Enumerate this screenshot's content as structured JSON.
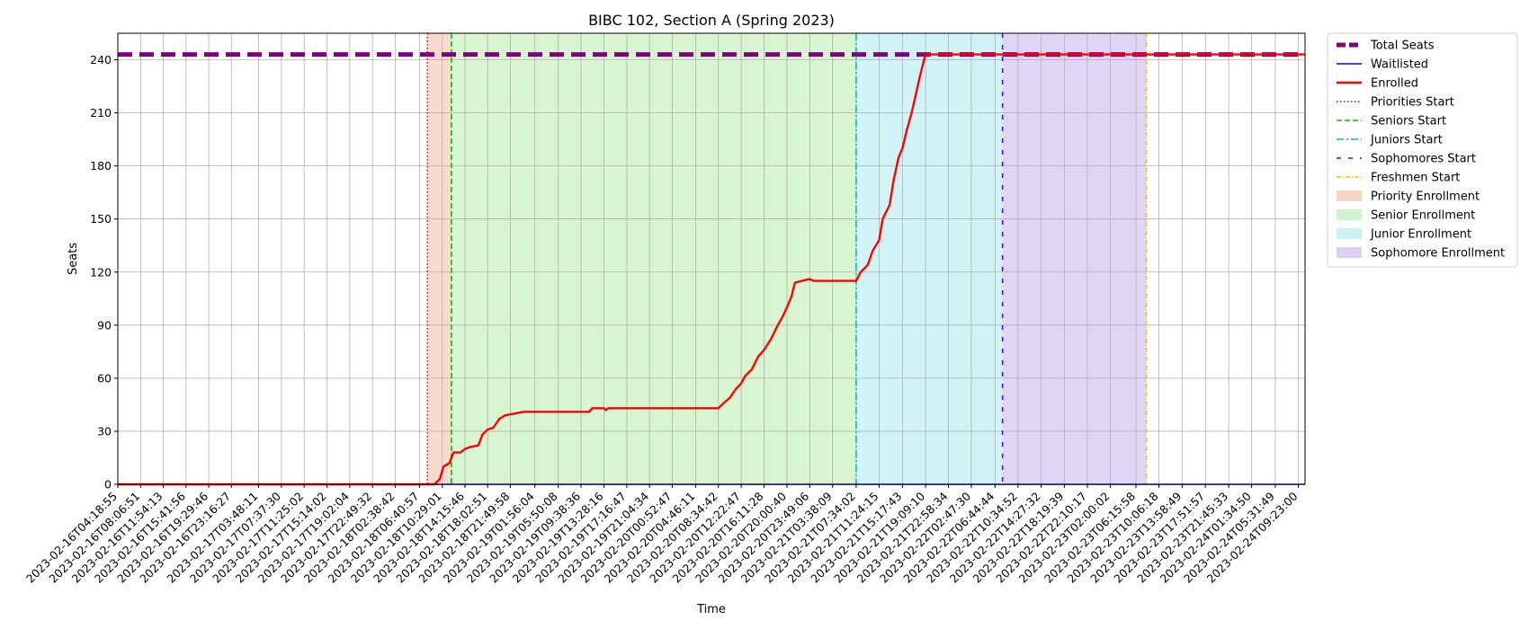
{
  "chart_data": {
    "type": "line",
    "title": "BIBC 102, Section A (Spring 2023)",
    "xlabel": "Time",
    "ylabel": "Seats",
    "ylim": [
      0,
      255
    ],
    "yticks": [
      0,
      30,
      60,
      90,
      120,
      150,
      180,
      210,
      240
    ],
    "grid": true,
    "legend_position": "outside-right",
    "xlim": [
      "2023-02-16T04:18:55",
      "2023-02-24T10:30:00"
    ],
    "xtick_labels": [
      "2023-02-16T04:18:55",
      "2023-02-16T08:06:51",
      "2023-02-16T11:54:13",
      "2023-02-16T15:41:56",
      "2023-02-16T19:29:46",
      "2023-02-16T23:16:27",
      "2023-02-17T03:48:11",
      "2023-02-17T07:37:30",
      "2023-02-17T11:25:02",
      "2023-02-17T15:14:02",
      "2023-02-17T19:02:04",
      "2023-02-17T22:49:32",
      "2023-02-18T02:38:42",
      "2023-02-18T06:40:57",
      "2023-02-18T10:29:01",
      "2023-02-18T14:15:46",
      "2023-02-18T18:02:51",
      "2023-02-18T21:49:58",
      "2023-02-19T01:56:04",
      "2023-02-19T05:50:08",
      "2023-02-19T09:38:36",
      "2023-02-19T13:28:16",
      "2023-02-19T17:16:47",
      "2023-02-19T21:04:34",
      "2023-02-20T00:52:47",
      "2023-02-20T04:46:11",
      "2023-02-20T08:34:42",
      "2023-02-20T12:22:47",
      "2023-02-20T16:11:28",
      "2023-02-20T20:00:40",
      "2023-02-20T23:49:06",
      "2023-02-21T03:38:09",
      "2023-02-21T07:34:02",
      "2023-02-21T11:24:15",
      "2023-02-21T15:17:43",
      "2023-02-21T19:09:10",
      "2023-02-21T22:58:34",
      "2023-02-22T02:47:30",
      "2023-02-22T06:44:44",
      "2023-02-22T10:34:52",
      "2023-02-22T14:27:32",
      "2023-02-22T18:19:39",
      "2023-02-22T22:10:17",
      "2023-02-23T02:00:02",
      "2023-02-23T06:15:58",
      "2023-02-23T10:06:18",
      "2023-02-23T13:58:49",
      "2023-02-23T17:51:57",
      "2023-02-23T21:45:33",
      "2023-02-24T01:34:50",
      "2023-02-24T05:31:49",
      "2023-02-24T09:23:00"
    ],
    "series": [
      {
        "name": "Total Seats",
        "color": "#800080",
        "style": "dashed-thick",
        "points": [
          [
            "2023-02-16T04:18:55",
            243
          ],
          [
            "2023-02-24T10:30:00",
            243
          ]
        ]
      },
      {
        "name": "Waitlisted",
        "color": "#0000ff",
        "style": "solid",
        "points": [
          [
            "2023-02-16T04:18:55",
            0
          ],
          [
            "2023-02-24T10:30:00",
            0
          ]
        ]
      },
      {
        "name": "Enrolled",
        "color": "#ff0000",
        "style": "solid-thick",
        "points": [
          [
            "2023-02-16T04:18:55",
            0
          ],
          [
            "2023-02-18T09:10:00",
            0
          ],
          [
            "2023-02-18T10:05:00",
            3
          ],
          [
            "2023-02-18T10:40:00",
            10
          ],
          [
            "2023-02-18T11:40:00",
            12
          ],
          [
            "2023-02-18T12:20:00",
            18
          ],
          [
            "2023-02-18T13:30:00",
            18
          ],
          [
            "2023-02-18T14:15:46",
            20
          ],
          [
            "2023-02-18T15:00:00",
            21
          ],
          [
            "2023-02-18T16:30:00",
            22
          ],
          [
            "2023-02-18T17:10:00",
            28
          ],
          [
            "2023-02-18T18:02:51",
            31
          ],
          [
            "2023-02-18T19:00:00",
            32
          ],
          [
            "2023-02-18T20:00:00",
            37
          ],
          [
            "2023-02-18T21:00:00",
            39
          ],
          [
            "2023-02-18T22:30:00",
            40
          ],
          [
            "2023-02-19T00:00:00",
            41
          ],
          [
            "2023-02-19T11:00:00",
            41
          ],
          [
            "2023-02-19T11:30:00",
            43
          ],
          [
            "2023-02-19T13:30:00",
            43
          ],
          [
            "2023-02-19T13:45:00",
            42
          ],
          [
            "2023-02-19T14:10:00",
            43
          ],
          [
            "2023-02-20T08:34:42",
            43
          ],
          [
            "2023-02-20T09:30:00",
            46
          ],
          [
            "2023-02-20T10:30:00",
            49
          ],
          [
            "2023-02-20T11:30:00",
            54
          ],
          [
            "2023-02-20T12:22:47",
            57
          ],
          [
            "2023-02-20T13:00:00",
            61
          ],
          [
            "2023-02-20T14:10:00",
            65
          ],
          [
            "2023-02-20T15:10:00",
            72
          ],
          [
            "2023-02-20T16:11:28",
            76
          ],
          [
            "2023-02-20T17:20:00",
            82
          ],
          [
            "2023-02-20T18:20:00",
            89
          ],
          [
            "2023-02-20T19:20:00",
            95
          ],
          [
            "2023-02-20T20:00:40",
            100
          ],
          [
            "2023-02-20T20:45:00",
            106
          ],
          [
            "2023-02-20T21:20:00",
            114
          ],
          [
            "2023-02-20T22:30:00",
            115
          ],
          [
            "2023-02-20T23:49:06",
            116
          ],
          [
            "2023-02-21T00:30:00",
            115
          ],
          [
            "2023-02-21T07:34:02",
            115
          ],
          [
            "2023-02-21T08:20:00",
            120
          ],
          [
            "2023-02-21T09:30:00",
            124
          ],
          [
            "2023-02-21T10:20:00",
            132
          ],
          [
            "2023-02-21T11:24:15",
            138
          ],
          [
            "2023-02-21T12:00:00",
            150
          ],
          [
            "2023-02-21T13:10:00",
            158
          ],
          [
            "2023-02-21T13:50:00",
            172
          ],
          [
            "2023-02-21T14:40:00",
            185
          ],
          [
            "2023-02-21T15:17:43",
            190
          ],
          [
            "2023-02-21T16:00:00",
            200
          ],
          [
            "2023-02-21T16:50:00",
            210
          ],
          [
            "2023-02-21T17:30:00",
            220
          ],
          [
            "2023-02-21T18:10:00",
            230
          ],
          [
            "2023-02-21T18:45:00",
            238
          ],
          [
            "2023-02-21T19:09:10",
            243
          ],
          [
            "2023-02-24T10:30:00",
            243
          ]
        ]
      }
    ],
    "markers": [
      {
        "name": "Priorities Start",
        "color": "#ff0000",
        "style": "dotted",
        "time": "2023-02-18T08:00:00"
      },
      {
        "name": "Seniors Start",
        "color": "#00c000",
        "style": "dashed",
        "time": "2023-02-18T12:00:00"
      },
      {
        "name": "Juniors Start",
        "color": "#00bfbf",
        "style": "dashdot",
        "time": "2023-02-21T07:34:02"
      },
      {
        "name": "Sophomores Start",
        "color": "#5a00ff",
        "style": "loose-dash",
        "time": "2023-02-22T08:00:00"
      },
      {
        "name": "Freshmen Start",
        "color": "#e6c800",
        "style": "dashdot-fine",
        "time": "2023-02-23T08:00:00"
      }
    ],
    "regions": [
      {
        "name": "Priority Enrollment",
        "color": "#f4c7b0",
        "start": "2023-02-18T08:00:00",
        "end": "2023-02-18T12:00:00"
      },
      {
        "name": "Senior Enrollment",
        "color": "#c3f0b8",
        "start": "2023-02-18T12:00:00",
        "end": "2023-02-21T07:34:02"
      },
      {
        "name": "Junior Enrollment",
        "color": "#b7ecef",
        "start": "2023-02-21T07:34:02",
        "end": "2023-02-22T08:00:00"
      },
      {
        "name": "Sophomore Enrollment",
        "color": "#d1bff0",
        "start": "2023-02-22T08:00:00",
        "end": "2023-02-23T08:00:00"
      }
    ]
  }
}
